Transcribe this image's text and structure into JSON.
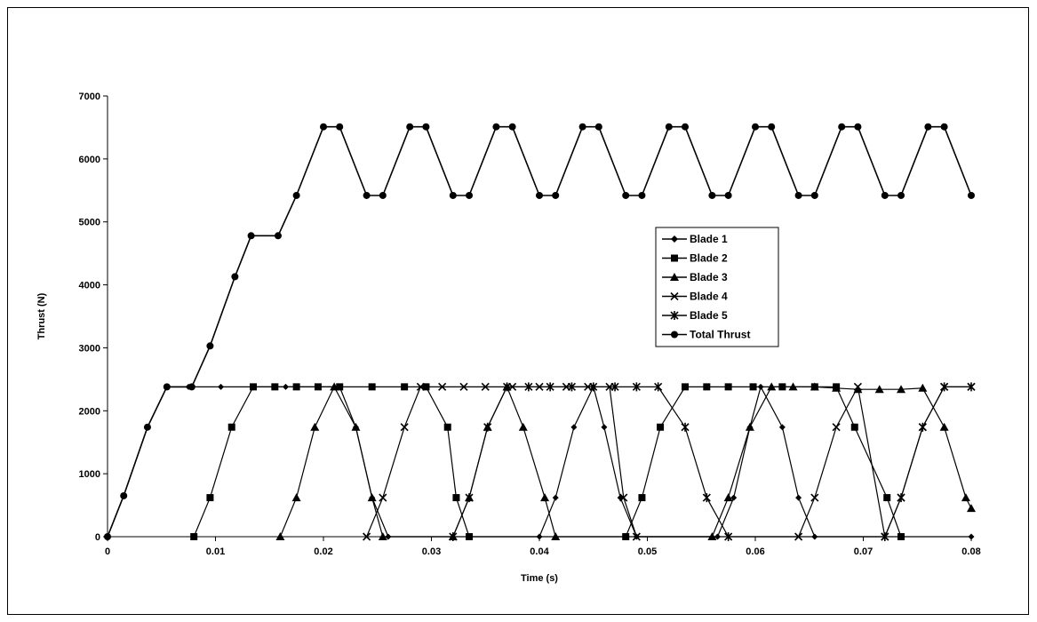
{
  "chart_data": {
    "type": "line",
    "title": "",
    "xlabel": "Time (s)",
    "ylabel": "Thrust (N)",
    "xlim": [
      0,
      0.08
    ],
    "ylim": [
      0,
      7000
    ],
    "x_ticks": [
      0,
      0.01,
      0.02,
      0.03,
      0.04,
      0.05,
      0.06,
      0.07,
      0.08
    ],
    "x_tick_labels": [
      "0",
      "0.01",
      "0.02",
      "0.03",
      "0.04",
      "0.05",
      "0.06",
      "0.07",
      "0.08"
    ],
    "y_ticks": [
      0,
      1000,
      2000,
      3000,
      4000,
      5000,
      6000,
      7000
    ],
    "y_tick_labels": [
      "0",
      "1000",
      "2000",
      "3000",
      "4000",
      "5000",
      "6000",
      "7000"
    ],
    "grid": false,
    "legend_position": "right",
    "series": [
      {
        "name": "Blade 1",
        "marker": "diamond",
        "points": [
          [
            0,
            0
          ],
          [
            0.0015,
            650
          ],
          [
            0.0037,
            1740
          ],
          [
            0.0055,
            2380
          ],
          [
            0.0075,
            2380
          ],
          [
            0.0105,
            2380
          ],
          [
            0.0135,
            2380
          ],
          [
            0.0165,
            2380
          ],
          [
            0.0195,
            2380
          ],
          [
            0.0215,
            2380
          ],
          [
            0.023,
            1740
          ],
          [
            0.0245,
            620
          ],
          [
            0.026,
            0
          ],
          [
            0.04,
            0
          ],
          [
            0.0415,
            620
          ],
          [
            0.0432,
            1740
          ],
          [
            0.045,
            2380
          ],
          [
            0.046,
            1740
          ],
          [
            0.0475,
            620
          ],
          [
            0.049,
            0
          ],
          [
            0.0565,
            0
          ],
          [
            0.058,
            620
          ],
          [
            0.0595,
            1740
          ],
          [
            0.0605,
            2380
          ],
          [
            0.0625,
            1740
          ],
          [
            0.064,
            620
          ],
          [
            0.0655,
            0
          ],
          [
            0.08,
            0
          ]
        ]
      },
      {
        "name": "Blade 2",
        "marker": "square",
        "points": [
          [
            0.008,
            0
          ],
          [
            0.0095,
            620
          ],
          [
            0.0115,
            1740
          ],
          [
            0.0135,
            2380
          ],
          [
            0.0155,
            2380
          ],
          [
            0.0175,
            2380
          ],
          [
            0.0195,
            2380
          ],
          [
            0.0215,
            2380
          ],
          [
            0.0245,
            2380
          ],
          [
            0.0275,
            2380
          ],
          [
            0.0295,
            2380
          ],
          [
            0.0315,
            1740
          ],
          [
            0.0323,
            620
          ],
          [
            0.0335,
            0
          ],
          [
            0.048,
            0
          ],
          [
            0.0495,
            620
          ],
          [
            0.0512,
            1740
          ],
          [
            0.0535,
            2380
          ],
          [
            0.0555,
            2380
          ],
          [
            0.0575,
            2380
          ],
          [
            0.0598,
            2380
          ],
          [
            0.0625,
            2380
          ],
          [
            0.0655,
            2380
          ],
          [
            0.0675,
            2380
          ],
          [
            0.0692,
            1740
          ],
          [
            0.0722,
            620
          ],
          [
            0.0735,
            0
          ]
        ]
      },
      {
        "name": "Blade 3",
        "marker": "triangle",
        "points": [
          [
            0.016,
            0
          ],
          [
            0.0175,
            620
          ],
          [
            0.0192,
            1740
          ],
          [
            0.021,
            2380
          ],
          [
            0.023,
            1740
          ],
          [
            0.0245,
            620
          ],
          [
            0.0255,
            0
          ],
          [
            0.032,
            0
          ],
          [
            0.0335,
            620
          ],
          [
            0.0352,
            1740
          ],
          [
            0.037,
            2380
          ],
          [
            0.0385,
            1740
          ],
          [
            0.0405,
            620
          ],
          [
            0.0415,
            0
          ],
          [
            0.056,
            0
          ],
          [
            0.0575,
            620
          ],
          [
            0.0595,
            1740
          ],
          [
            0.0615,
            2380
          ],
          [
            0.0635,
            2380
          ],
          [
            0.0655,
            2380
          ],
          [
            0.0675,
            2360
          ],
          [
            0.0695,
            2340
          ],
          [
            0.0715,
            2340
          ],
          [
            0.0735,
            2340
          ],
          [
            0.0755,
            2360
          ],
          [
            0.0775,
            1740
          ],
          [
            0.0795,
            620
          ],
          [
            0.08,
            450
          ]
        ]
      },
      {
        "name": "Blade 4",
        "marker": "x",
        "points": [
          [
            0.024,
            0
          ],
          [
            0.0255,
            620
          ],
          [
            0.0275,
            1740
          ],
          [
            0.029,
            2380
          ],
          [
            0.031,
            2380
          ],
          [
            0.033,
            2380
          ],
          [
            0.035,
            2380
          ],
          [
            0.0375,
            2380
          ],
          [
            0.04,
            2380
          ],
          [
            0.0425,
            2380
          ],
          [
            0.0445,
            2380
          ],
          [
            0.0465,
            2380
          ],
          [
            0.0478,
            620
          ],
          [
            0.049,
            0
          ],
          [
            0.064,
            0
          ],
          [
            0.0655,
            620
          ],
          [
            0.0675,
            1740
          ],
          [
            0.0695,
            2380
          ],
          [
            0.072,
            0
          ],
          [
            0.0735,
            620
          ],
          [
            0.0755,
            1740
          ],
          [
            0.0775,
            2380
          ],
          [
            0.08,
            2380
          ]
        ]
      },
      {
        "name": "Blade 5",
        "marker": "star",
        "points": [
          [
            0.032,
            0
          ],
          [
            0.0335,
            620
          ],
          [
            0.0352,
            1740
          ],
          [
            0.037,
            2380
          ],
          [
            0.039,
            2380
          ],
          [
            0.041,
            2380
          ],
          [
            0.043,
            2380
          ],
          [
            0.045,
            2380
          ],
          [
            0.047,
            2380
          ],
          [
            0.049,
            2380
          ],
          [
            0.051,
            2380
          ],
          [
            0.0535,
            1740
          ],
          [
            0.0555,
            620
          ],
          [
            0.0575,
            0
          ],
          [
            0.072,
            0
          ],
          [
            0.0735,
            620
          ],
          [
            0.0755,
            1740
          ],
          [
            0.0775,
            2380
          ],
          [
            0.08,
            2380
          ]
        ]
      },
      {
        "name": "Total Thrust",
        "marker": "circle",
        "points": [
          [
            0,
            0
          ],
          [
            0.0015,
            650
          ],
          [
            0.0037,
            1740
          ],
          [
            0.0055,
            2380
          ],
          [
            0.0078,
            2380
          ],
          [
            0.0095,
            3030
          ],
          [
            0.0118,
            4130
          ],
          [
            0.0133,
            4780
          ],
          [
            0.0158,
            4780
          ],
          [
            0.0175,
            5420
          ],
          [
            0.02,
            6510
          ],
          [
            0.0215,
            6510
          ],
          [
            0.024,
            5420
          ],
          [
            0.0255,
            5420
          ],
          [
            0.028,
            6510
          ],
          [
            0.0295,
            6510
          ],
          [
            0.032,
            5420
          ],
          [
            0.0335,
            5420
          ],
          [
            0.036,
            6510
          ],
          [
            0.0375,
            6510
          ],
          [
            0.04,
            5420
          ],
          [
            0.0415,
            5420
          ],
          [
            0.044,
            6510
          ],
          [
            0.0455,
            6510
          ],
          [
            0.048,
            5420
          ],
          [
            0.0495,
            5420
          ],
          [
            0.052,
            6510
          ],
          [
            0.0535,
            6510
          ],
          [
            0.056,
            5420
          ],
          [
            0.0575,
            5420
          ],
          [
            0.06,
            6510
          ],
          [
            0.0615,
            6510
          ],
          [
            0.064,
            5420
          ],
          [
            0.0655,
            5420
          ],
          [
            0.068,
            6510
          ],
          [
            0.0695,
            6510
          ],
          [
            0.072,
            5420
          ],
          [
            0.0735,
            5420
          ],
          [
            0.076,
            6510
          ],
          [
            0.0775,
            6510
          ],
          [
            0.08,
            5420
          ]
        ]
      }
    ]
  }
}
